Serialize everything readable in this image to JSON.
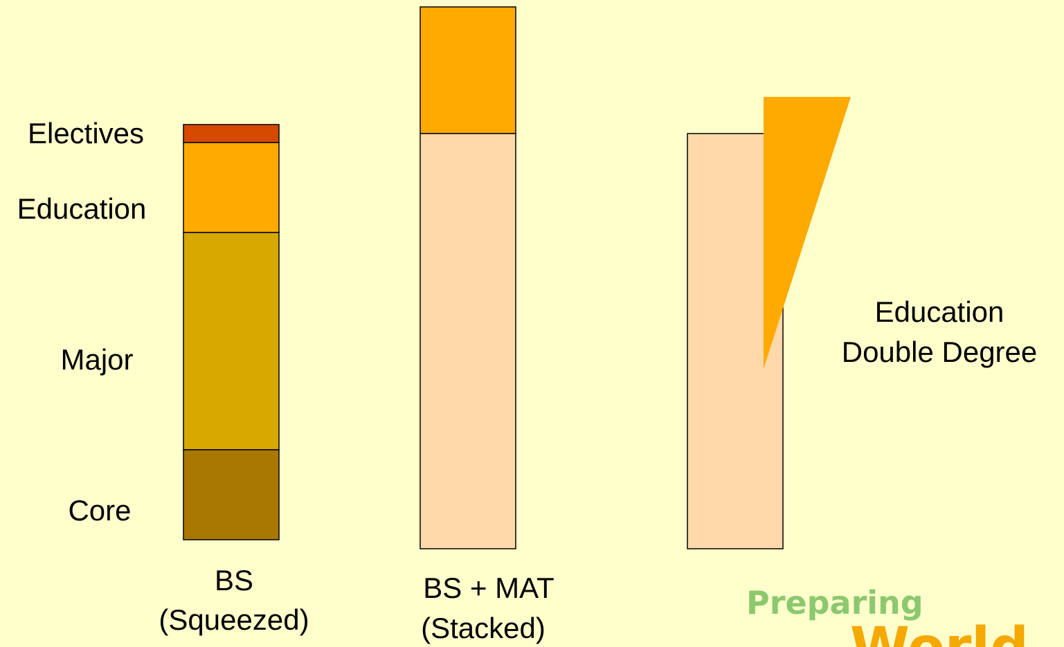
{
  "side_labels": {
    "electives": "Electives",
    "education": "Education",
    "major": "Major",
    "core": "Core"
  },
  "columns": {
    "bs": {
      "line1": "BS",
      "line2": "(Squeezed)"
    },
    "bs_mat": {
      "line1": "BS + MAT",
      "line2": "(Stacked)"
    },
    "double": {
      "line1": "Education",
      "line2": "Double Degree"
    }
  },
  "logo": {
    "line1": "Preparing",
    "line2": "World"
  },
  "colors": {
    "background": "#FFFFCC",
    "electives": "#D64A00",
    "education": "#FFAA00",
    "major": "#D6A800",
    "core": "#A87800",
    "degree_base": "#FFD9AA",
    "logo_green": "#8CC86E",
    "logo_orange": "#F5A800"
  }
}
